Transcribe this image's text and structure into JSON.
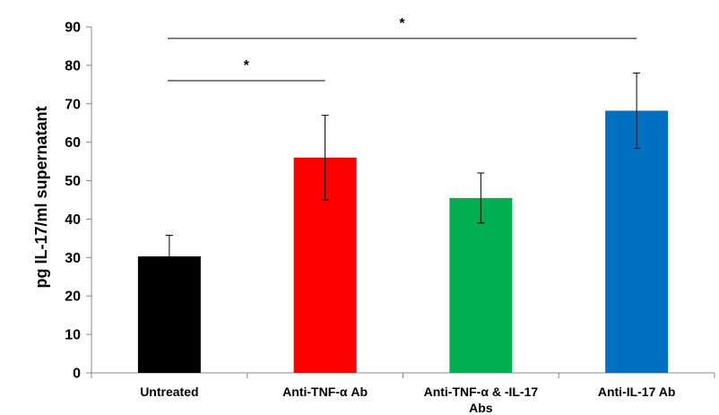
{
  "chart_data": {
    "type": "bar",
    "ylabel": "pg IL-17/ml supernatant",
    "ylim": [
      0,
      90
    ],
    "y_ticks": [
      0,
      10,
      20,
      30,
      40,
      50,
      60,
      70,
      80,
      90
    ],
    "grid": false,
    "categories": [
      "Untreated",
      "Anti-TNF-α Ab",
      "Anti-TNF-α & -IL-17 Abs",
      "Anti-IL-17 Ab"
    ],
    "values": [
      30.3,
      56,
      45.5,
      68.2
    ],
    "error": [
      5.5,
      11,
      6.5,
      9.8
    ],
    "colors": [
      "#000000",
      "#ff0000",
      "#00b050",
      "#0070c0"
    ],
    "significance": [
      {
        "from": 0,
        "to": 1,
        "label": "*",
        "y": 76
      },
      {
        "from": 0,
        "to": 3,
        "label": "*",
        "y": 87
      }
    ]
  }
}
